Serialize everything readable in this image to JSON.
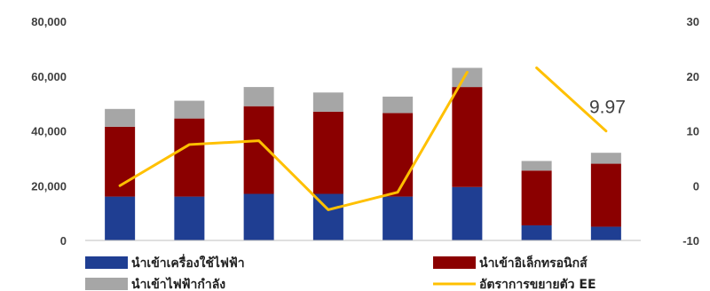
{
  "chart_data": {
    "type": "bar",
    "stacked": true,
    "categories": [
      "",
      "",
      "",
      "",
      "",
      "",
      "",
      ""
    ],
    "ylim": [
      0,
      80000
    ],
    "y2lim": [
      -10,
      30
    ],
    "yticks": [
      "0",
      "20,000",
      "40,000",
      "60,000",
      "80,000"
    ],
    "y2ticks": [
      "-10",
      "0",
      "10",
      "20",
      "30"
    ],
    "grid": false,
    "legend_position": "bottom",
    "series": [
      {
        "name": "นำเข้าเครื่องใช้ไฟฟ้า",
        "type": "bar",
        "axis": "left",
        "color": "#1F3E92",
        "values": [
          16000,
          16000,
          17000,
          17000,
          16000,
          19500,
          5500,
          5000
        ]
      },
      {
        "name": "นำเข้าอิเล็กทรอนิกส์",
        "type": "bar",
        "axis": "left",
        "color": "#8B0000",
        "values": [
          25500,
          28500,
          32000,
          30000,
          30500,
          36500,
          20000,
          23000
        ]
      },
      {
        "name": "นำเข้าไฟฟ้ากำลัง",
        "type": "bar",
        "axis": "left",
        "color": "#A6A6A6",
        "values": [
          6500,
          6500,
          7000,
          7000,
          6000,
          7000,
          3500,
          4000
        ]
      },
      {
        "name": "อัตราการขยายตัว EE",
        "type": "line",
        "axis": "right",
        "color": "#FFC000",
        "segments": [
          [
            0,
            1,
            2,
            3,
            4,
            5
          ],
          [
            6,
            7
          ]
        ],
        "values": [
          0,
          7.5,
          8.2,
          -4.4,
          -1.2,
          20.7,
          21.5,
          9.97
        ]
      }
    ],
    "annotations": [
      {
        "text": "9.97",
        "index": 7,
        "series": 3
      }
    ]
  }
}
